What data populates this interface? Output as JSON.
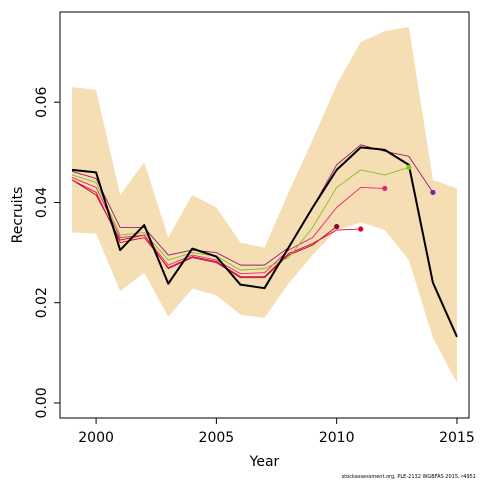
{
  "chart_data": {
    "type": "line",
    "xlabel": "Year",
    "ylabel": "Recruits",
    "xlim": [
      1998.5,
      2015.5
    ],
    "ylim": [
      -0.003,
      0.078
    ],
    "x_ticks": [
      2000,
      2005,
      2010,
      2015
    ],
    "y_ticks": [
      0.0,
      0.02,
      0.04,
      0.06
    ],
    "y_tick_labels": [
      "0.00",
      "0.02",
      "0.04",
      "0.06"
    ],
    "grid": false,
    "credit": "stockassessment.org, PLE-2132 WGBFAS 2015, r4951",
    "confidence_band": {
      "color": "#f5deb3",
      "x": [
        1999,
        2000,
        2001,
        2002,
        2003,
        2004,
        2005,
        2006,
        2007,
        2008,
        2009,
        2010,
        2011,
        2012,
        2013,
        2014,
        2015
      ],
      "upper": [
        0.063,
        0.0625,
        0.0415,
        0.048,
        0.033,
        0.0415,
        0.039,
        0.032,
        0.031,
        0.042,
        0.0525,
        0.0635,
        0.072,
        0.0742,
        0.075,
        0.0445,
        0.0428
      ],
      "lower": [
        0.034,
        0.0338,
        0.0223,
        0.026,
        0.0172,
        0.0228,
        0.0215,
        0.0176,
        0.017,
        0.0238,
        0.0295,
        0.0345,
        0.036,
        0.0345,
        0.0285,
        0.013,
        0.004
      ]
    },
    "series": [
      {
        "color": "#000000",
        "x": [
          1999,
          2000,
          2001,
          2002,
          2003,
          2004,
          2005,
          2006,
          2007,
          2008,
          2009,
          2010,
          2011,
          2012,
          2013,
          2014,
          2015
        ],
        "values": [
          0.0465,
          0.046,
          0.0305,
          0.0355,
          0.0238,
          0.0308,
          0.0292,
          0.0236,
          0.0229,
          0.031,
          0.039,
          0.0465,
          0.051,
          0.0505,
          0.0475,
          0.024,
          0.0132
        ]
      },
      {
        "color": "#9b1b6f",
        "marker_color": "#7a1fa0",
        "x": [
          1999,
          2000,
          2001,
          2002,
          2003,
          2004,
          2005,
          2006,
          2007,
          2008,
          2009,
          2010,
          2011,
          2012,
          2013,
          2014
        ],
        "values": [
          0.0462,
          0.0448,
          0.035,
          0.035,
          0.0295,
          0.0305,
          0.03,
          0.0275,
          0.0275,
          0.031,
          0.039,
          0.0475,
          0.0515,
          0.0502,
          0.0492,
          0.042
        ]
      },
      {
        "color": "#7cc41c",
        "x": [
          1999,
          2000,
          2001,
          2002,
          2003,
          2004,
          2005,
          2006,
          2007,
          2008,
          2009,
          2010,
          2011,
          2012,
          2013
        ],
        "values": [
          0.0455,
          0.044,
          0.0335,
          0.034,
          0.0285,
          0.03,
          0.0293,
          0.0265,
          0.0268,
          0.029,
          0.035,
          0.043,
          0.0465,
          0.0455,
          0.047
        ]
      },
      {
        "color": "#e6227c",
        "x": [
          1999,
          2000,
          2001,
          2002,
          2003,
          2004,
          2005,
          2006,
          2007,
          2008,
          2009,
          2010,
          2011,
          2012
        ],
        "values": [
          0.045,
          0.043,
          0.033,
          0.0335,
          0.0275,
          0.0295,
          0.0285,
          0.0258,
          0.026,
          0.0305,
          0.033,
          0.039,
          0.043,
          0.0428
        ]
      },
      {
        "color": "#e6003a",
        "marker_color": "#d4002e",
        "x": [
          1999,
          2000,
          2001,
          2002,
          2003,
          2004,
          2005,
          2006,
          2007,
          2008,
          2009,
          2010,
          2011
        ],
        "values": [
          0.0445,
          0.042,
          0.032,
          0.033,
          0.027,
          0.0292,
          0.0282,
          0.0252,
          0.0252,
          0.0298,
          0.0318,
          0.0345,
          0.0347
        ]
      },
      {
        "color": "#b0003a",
        "marker_color": "#8e0030",
        "x": [
          1999,
          2000,
          2001,
          2002,
          2003,
          2004,
          2005,
          2006,
          2007,
          2008,
          2009,
          2010
        ],
        "values": [
          0.0445,
          0.0415,
          0.0325,
          0.0335,
          0.0268,
          0.029,
          0.028,
          0.025,
          0.025,
          0.0295,
          0.0315,
          0.0352
        ]
      }
    ]
  }
}
